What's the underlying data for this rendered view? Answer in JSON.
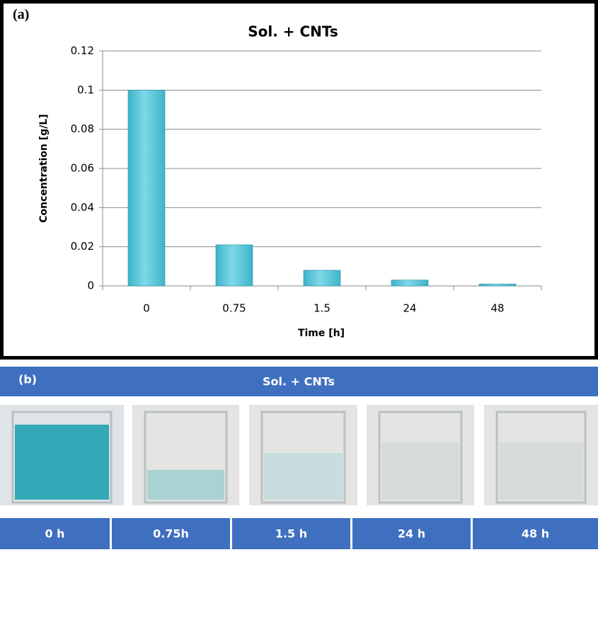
{
  "chart_data": {
    "type": "bar",
    "panel_label": "(a)",
    "title": "Sol. + CNTs",
    "x_label": "Time [h]",
    "y_label": "Concentration [g/L]",
    "categories": [
      "0",
      "0.75",
      "1.5",
      "24",
      "48"
    ],
    "values": [
      0.1,
      0.021,
      0.008,
      0.003,
      0.001
    ],
    "color": "#3cb4c8",
    "ylim": [
      0,
      0.12
    ],
    "yticks": [
      0,
      0.02,
      0.04,
      0.06,
      0.08,
      0.1,
      0.12
    ],
    "grid": true
  },
  "panel_b": {
    "label": "(b)",
    "title": "Sol. + CNTs",
    "time_labels": [
      "0 h",
      "0.75h",
      "1.5 h",
      "24 h",
      "48 h"
    ]
  }
}
